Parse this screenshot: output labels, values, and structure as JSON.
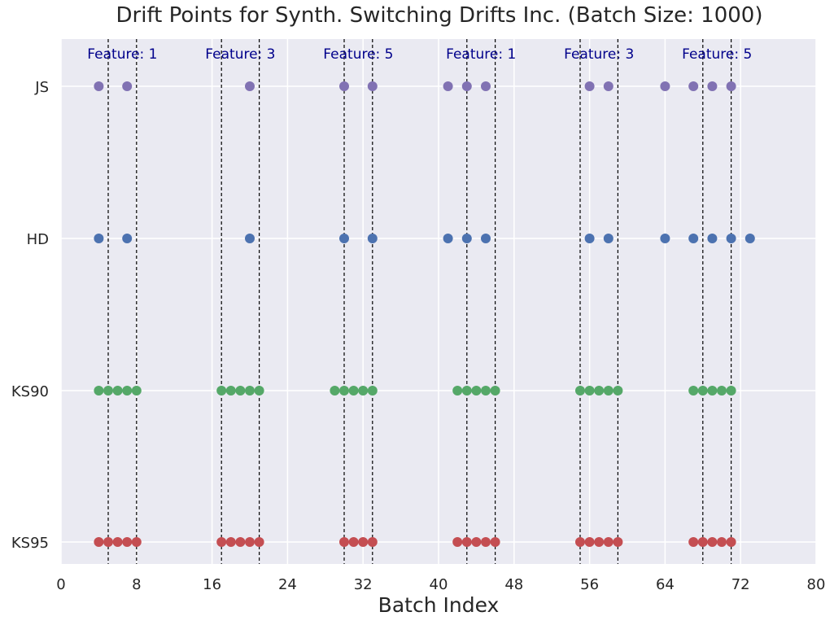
{
  "chart_data": {
    "type": "scatter",
    "title": "Drift Points for Synth. Switching Drifts Inc. (Batch Size: 1000)",
    "xlabel": "Batch Index",
    "ylabel": "",
    "xlim": [
      0,
      80
    ],
    "xticks": [
      0,
      8,
      16,
      24,
      32,
      40,
      48,
      56,
      64,
      72,
      80
    ],
    "categories": [
      "KS95",
      "KS90",
      "HD",
      "JS"
    ],
    "grid": true,
    "legend": "none",
    "series": [
      {
        "name": "JS",
        "color": "#8172b3",
        "x": [
          4,
          7,
          20,
          30,
          33,
          41,
          43,
          45,
          56,
          58,
          64,
          67,
          69,
          71
        ]
      },
      {
        "name": "HD",
        "color": "#4c72b0",
        "x": [
          4,
          7,
          20,
          30,
          33,
          41,
          43,
          45,
          56,
          58,
          64,
          67,
          69,
          71,
          73
        ]
      },
      {
        "name": "KS90",
        "color": "#55a868",
        "x": [
          4,
          5,
          6,
          7,
          8,
          17,
          18,
          19,
          20,
          21,
          29,
          30,
          31,
          32,
          33,
          42,
          43,
          44,
          45,
          46,
          55,
          56,
          57,
          58,
          59,
          67,
          68,
          69,
          70,
          71
        ]
      },
      {
        "name": "KS95",
        "color": "#c44e52",
        "x": [
          4,
          5,
          6,
          7,
          8,
          17,
          18,
          19,
          20,
          21,
          30,
          31,
          32,
          33,
          42,
          43,
          44,
          45,
          46,
          55,
          56,
          57,
          58,
          59,
          67,
          68,
          69,
          70,
          71
        ]
      }
    ],
    "drift_regions": [
      {
        "label": "Feature: 1",
        "start": 5,
        "end": 8
      },
      {
        "label": "Feature: 3",
        "start": 17,
        "end": 21
      },
      {
        "label": "Feature: 5",
        "start": 30,
        "end": 33
      },
      {
        "label": "Feature: 1",
        "start": 43,
        "end": 46
      },
      {
        "label": "Feature: 3",
        "start": 55,
        "end": 59
      },
      {
        "label": "Feature: 5",
        "start": 68,
        "end": 71
      }
    ],
    "colors": {
      "plot_background": "#eaeaf2",
      "grid": "#ffffff",
      "region_line": "#000000",
      "region_label": "#00008b"
    }
  }
}
